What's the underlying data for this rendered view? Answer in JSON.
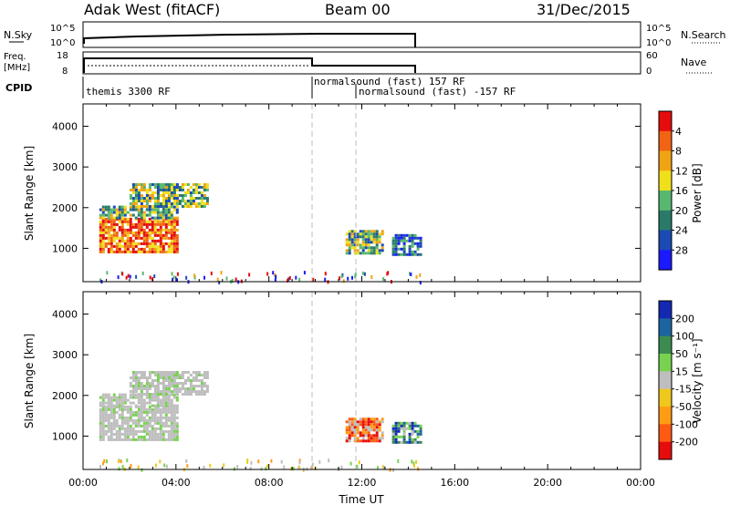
{
  "header": {
    "station": "Adak West (fitACF)",
    "beam": "Beam 00",
    "date": "31/Dec/2015"
  },
  "noise_panel": {
    "left_label": "N.Sky",
    "right_label": "N.Search",
    "left_ticks": [
      "10^5",
      "10^0"
    ],
    "right_ticks": [
      "10^5",
      "10^0"
    ]
  },
  "freq_panel": {
    "left_label_line1": "Freq.",
    "left_label_line2": "[MHz]",
    "right_label": "Nave",
    "left_ticks": [
      "18",
      "8"
    ],
    "right_ticks": [
      "60",
      "0"
    ]
  },
  "cpid_panel": {
    "label": "CPID",
    "programs": [
      {
        "name": "themis 3300 RF",
        "start": 0.7,
        "end": 9.9
      },
      {
        "name": "normalsound (fast) 157 RF",
        "start": 9.9,
        "end": 12.0
      },
      {
        "name": "normalsound (fast) -157 RF",
        "start": 12.0,
        "end": 14.6
      }
    ]
  },
  "colors": {
    "power_scale": [
      "#1a1aff",
      "#1c4ab4",
      "#2a7a6a",
      "#58b870",
      "#f0e01c",
      "#f0a414",
      "#f06414",
      "#e60c0c"
    ],
    "velocity_scale": [
      "#e60c0c",
      "#ff5a14",
      "#ff9c14",
      "#f0c81c",
      "#bebebe",
      "#78d250",
      "#3c8c50",
      "#1c64a0",
      "#1428b4"
    ]
  },
  "chart_data": [
    {
      "type": "heatmap",
      "name": "power",
      "xlabel": "",
      "ylabel": "Slant Range [km]",
      "xlim": [
        0,
        24
      ],
      "ylim": [
        180,
        4550
      ],
      "yticks": [
        "1000",
        "2000",
        "3000",
        "4000"
      ],
      "colorbar_label": "Power [dB]",
      "colorbar_ticks": [
        "4",
        "8",
        "12",
        "16",
        "20",
        "24",
        "28"
      ],
      "regions": [
        {
          "t0": 0.7,
          "t1": 4.1,
          "r0": 900,
          "r1": 1750,
          "level": "high"
        },
        {
          "t0": 0.7,
          "t1": 4.1,
          "r0": 1750,
          "r1": 2050,
          "level": "mid"
        },
        {
          "t0": 2.0,
          "t1": 5.4,
          "r0": 2050,
          "r1": 2600,
          "level": "mid"
        },
        {
          "t0": 11.3,
          "t1": 12.9,
          "r0": 900,
          "r1": 1450,
          "level": "mid"
        },
        {
          "t0": 13.3,
          "t1": 14.5,
          "r0": 850,
          "r1": 1350,
          "level": "low"
        }
      ]
    },
    {
      "type": "heatmap",
      "name": "velocity",
      "xlabel": "Time UT",
      "ylabel": "Slant Range [km]",
      "xlim": [
        0,
        24
      ],
      "ylim": [
        180,
        4550
      ],
      "yticks": [
        "1000",
        "2000",
        "3000",
        "4000"
      ],
      "xticks": [
        "00:00",
        "04:00",
        "08:00",
        "12:00",
        "16:00",
        "20:00",
        "00:00"
      ],
      "colorbar_label": "Velocity [m s⁻¹]",
      "colorbar_ticks": [
        "200",
        "100",
        "50",
        "15",
        "-15",
        "-50",
        "-100",
        "-200"
      ],
      "regions": [
        {
          "t0": 0.7,
          "t1": 4.1,
          "r0": 900,
          "r1": 1750,
          "level": "ground"
        },
        {
          "t0": 0.7,
          "t1": 4.1,
          "r0": 1750,
          "r1": 2050,
          "level": "ground"
        },
        {
          "t0": 2.0,
          "t1": 5.4,
          "r0": 2050,
          "r1": 2600,
          "level": "ground"
        },
        {
          "t0": 11.3,
          "t1": 12.9,
          "r0": 900,
          "r1": 1450,
          "level": "negative"
        },
        {
          "t0": 13.3,
          "t1": 14.5,
          "r0": 850,
          "r1": 1350,
          "level": "positive"
        }
      ]
    }
  ]
}
